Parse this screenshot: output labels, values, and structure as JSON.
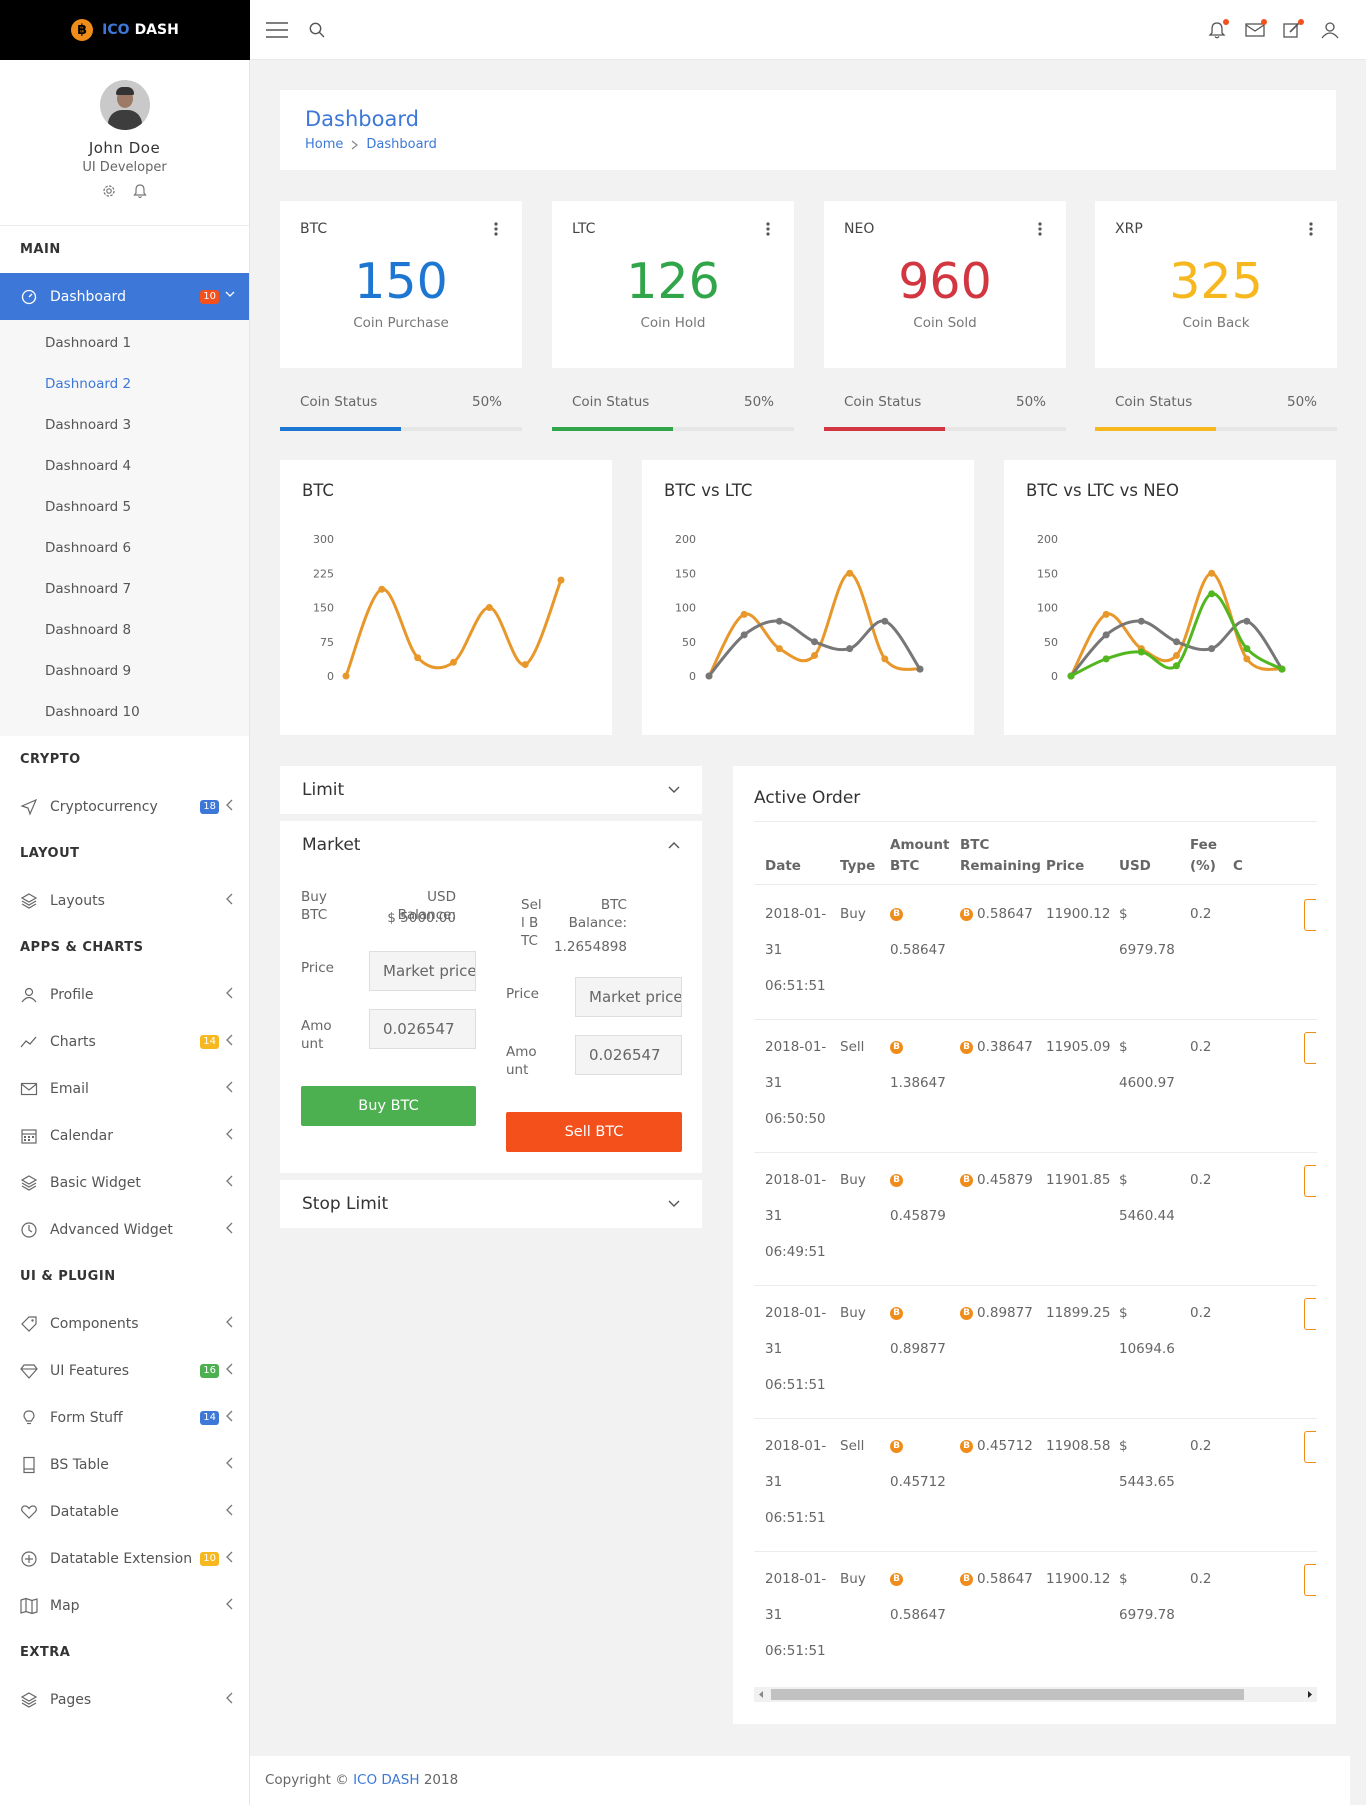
{
  "brand": {
    "coin_glyph": "฿",
    "part1": "ICO",
    "part2": "DASH"
  },
  "topbar": {
    "icons": [
      "menu-icon",
      "search-icon",
      "bell-icon",
      "mail-icon",
      "edit-icon",
      "user-icon"
    ]
  },
  "profile": {
    "name": "John Doe",
    "role": "UI Developer"
  },
  "sidebar": {
    "main_title": "MAIN",
    "dashboard": {
      "label": "Dashboard",
      "badge": "10"
    },
    "dashboard_items": [
      "Dashnoard 1",
      "Dashnoard 2",
      "Dashnoard 3",
      "Dashnoard 4",
      "Dashnoard 5",
      "Dashnoard 6",
      "Dashnoard 7",
      "Dashnoard 8",
      "Dashnoard 9",
      "Dashnoard 10"
    ],
    "sections": [
      {
        "title": "CRYPTO",
        "items": [
          {
            "label": "Cryptocurrency",
            "badge": "18",
            "badge_color": "#3d78d8",
            "icon": "send-icon"
          }
        ]
      },
      {
        "title": "LAYOUT",
        "items": [
          {
            "label": "Layouts",
            "icon": "layers-icon"
          }
        ]
      },
      {
        "title": "APPS & CHARTS",
        "items": [
          {
            "label": "Profile",
            "icon": "user-icon"
          },
          {
            "label": "Charts",
            "badge": "14",
            "badge_color": "#f7b71e",
            "icon": "chart-line-icon"
          },
          {
            "label": "Email",
            "icon": "mail-icon"
          },
          {
            "label": "Calendar",
            "icon": "calendar-icon"
          },
          {
            "label": "Basic Widget",
            "icon": "layers-icon"
          },
          {
            "label": "Advanced Widget",
            "icon": "clock-icon"
          }
        ]
      },
      {
        "title": "UI & PLUGIN",
        "items": [
          {
            "label": "Components",
            "icon": "tag-icon"
          },
          {
            "label": "UI Features",
            "badge": "16",
            "badge_color": "#4caf50",
            "icon": "diamond-icon"
          },
          {
            "label": "Form Stuff",
            "badge": "14",
            "badge_color": "#3d78d8",
            "icon": "bulb-icon"
          },
          {
            "label": "BS Table",
            "icon": "table-icon"
          },
          {
            "label": "Datatable",
            "icon": "heart-icon"
          },
          {
            "label": "Datatable Extension",
            "badge": "10",
            "badge_color": "#f7b71e",
            "icon": "plus-circle-icon"
          },
          {
            "label": "Map",
            "icon": "map-icon"
          }
        ]
      },
      {
        "title": "EXTRA",
        "items": [
          {
            "label": "Pages",
            "icon": "layers-icon"
          }
        ]
      }
    ]
  },
  "page": {
    "title": "Dashboard",
    "breadcrumb": [
      "Home",
      "Dashboard"
    ]
  },
  "coins": [
    {
      "label": "BTC",
      "value": "150",
      "caption": "Coin Purchase",
      "status_label": "Coin Status",
      "status_pct": "50%",
      "status_fill": 0.5,
      "color": "#1d77d2"
    },
    {
      "label": "LTC",
      "value": "126",
      "caption": "Coin Hold",
      "status_label": "Coin Status",
      "status_pct": "50%",
      "status_fill": 0.5,
      "color": "#31a54a"
    },
    {
      "label": "NEO",
      "value": "960",
      "caption": "Coin Sold",
      "status_label": "Coin Status",
      "status_pct": "50%",
      "status_fill": 0.5,
      "color": "#d23640"
    },
    {
      "label": "XRP",
      "value": "325",
      "caption": "Coin Back",
      "status_label": "Coin Status",
      "status_pct": "50%",
      "status_fill": 0.5,
      "color": "#f7b71e"
    }
  ],
  "chart_data": [
    {
      "type": "line",
      "title": "BTC",
      "yticks": [
        0,
        75,
        150,
        225,
        300
      ],
      "ylim": [
        0,
        300
      ],
      "series": [
        {
          "color": "#e8972a",
          "values": [
            0,
            190,
            40,
            30,
            150,
            25,
            210
          ]
        }
      ]
    },
    {
      "type": "line",
      "title": "BTC vs LTC",
      "yticks": [
        0,
        50,
        100,
        150,
        200
      ],
      "ylim": [
        0,
        200
      ],
      "series": [
        {
          "color": "#e8972a",
          "values": [
            0,
            90,
            40,
            30,
            150,
            25,
            10
          ]
        },
        {
          "color": "#777777",
          "values": [
            0,
            60,
            80,
            50,
            40,
            80,
            10
          ]
        }
      ]
    },
    {
      "type": "line",
      "title": "BTC vs LTC vs NEO",
      "yticks": [
        0,
        50,
        100,
        150,
        200
      ],
      "ylim": [
        0,
        200
      ],
      "series": [
        {
          "color": "#e8972a",
          "values": [
            0,
            90,
            40,
            30,
            150,
            25,
            10
          ]
        },
        {
          "color": "#777777",
          "values": [
            0,
            60,
            80,
            50,
            40,
            80,
            10
          ]
        },
        {
          "color": "#52b71e",
          "values": [
            0,
            25,
            35,
            15,
            120,
            40,
            10
          ]
        }
      ]
    }
  ],
  "limit": {
    "title": "Limit"
  },
  "market": {
    "title": "Market",
    "buy": {
      "title": "Buy BTC",
      "balance_label": "USD Balance:",
      "balance": "$ 5000.00",
      "price_label": "Price",
      "price_placeholder": "Market price",
      "amount_label": "Amount",
      "amount_value": "0.026547",
      "button": "Buy BTC"
    },
    "sell": {
      "title": "Sell BTC",
      "balance_label": "BTC Balance:",
      "balance": "1.2654898",
      "price_label": "Price",
      "price_placeholder": "Market price",
      "amount_label": "Amount",
      "amount_value": "0.026547",
      "button": "Sell BTC"
    }
  },
  "stop_limit": {
    "title": "Stop Limit"
  },
  "active_order": {
    "title": "Active Order",
    "columns": [
      "Date",
      "Type",
      "Amount BTC",
      "BTC Remaining",
      "Price",
      "USD",
      "Fee (%)",
      "C"
    ],
    "rows": [
      {
        "date": "2018-01-31 06:51:51",
        "type": "Buy",
        "amount": "0.58647",
        "remaining": "0.58647",
        "price": "11900.12",
        "usd": "6979.78",
        "fee": "0.2"
      },
      {
        "date": "2018-01-31 06:50:50",
        "type": "Sell",
        "amount": "1.38647",
        "remaining": "0.38647",
        "price": "11905.09",
        "usd": "4600.97",
        "fee": "0.2"
      },
      {
        "date": "2018-01-31 06:49:51",
        "type": "Buy",
        "amount": "0.45879",
        "remaining": "0.45879",
        "price": "11901.85",
        "usd": "5460.44",
        "fee": "0.2"
      },
      {
        "date": "2018-01-31 06:51:51",
        "type": "Buy",
        "amount": "0.89877",
        "remaining": "0.89877",
        "price": "11899.25",
        "usd": "10694.6",
        "fee": "0.2"
      },
      {
        "date": "2018-01-31 06:51:51",
        "type": "Sell",
        "amount": "0.45712",
        "remaining": "0.45712",
        "price": "11908.58",
        "usd": "5443.65",
        "fee": "0.2"
      },
      {
        "date": "2018-01-31 06:51:51",
        "type": "Buy",
        "amount": "0.58647",
        "remaining": "0.58647",
        "price": "11900.12",
        "usd": "6979.78",
        "fee": "0.2"
      }
    ]
  },
  "footer": {
    "prefix": "Copyright ©",
    "brand": "ICO DASH",
    "year": "2018"
  }
}
